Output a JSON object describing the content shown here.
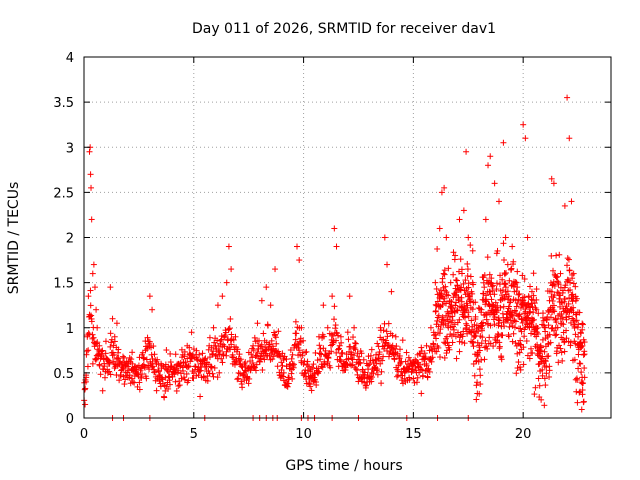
{
  "chart_data": {
    "type": "scatter",
    "title": "Day 011 of 2026, SRMTID for receiver dav1",
    "xlabel": "GPS time / hours",
    "ylabel": "SRMTID / TECUs",
    "xlim": [
      0,
      24
    ],
    "ylim": [
      0,
      4
    ],
    "xticks": [
      0,
      5,
      10,
      15,
      20
    ],
    "xtick_labels": [
      "0",
      "5",
      "10",
      "15",
      "20"
    ],
    "yticks": [
      0,
      0.5,
      1,
      1.5,
      2,
      2.5,
      3,
      3.5,
      4
    ],
    "ytick_labels": [
      "0",
      "0.5",
      "1",
      "1.5",
      "2",
      "2.5",
      "3",
      "3.5",
      "4"
    ],
    "grid": true,
    "marker": "plus",
    "color": "#ff0000",
    "series": [
      {
        "name": "SRMTID",
        "x_range": [
          0,
          22.8
        ],
        "points": [
          [
            0.05,
            0.15
          ],
          [
            0.1,
            0.45
          ],
          [
            0.15,
            0.9
          ],
          [
            0.2,
            1.35
          ],
          [
            0.25,
            2.95
          ],
          [
            0.28,
            3.0
          ],
          [
            0.3,
            2.7
          ],
          [
            0.32,
            2.55
          ],
          [
            0.35,
            2.2
          ],
          [
            0.4,
            1.6
          ],
          [
            0.45,
            1.7
          ],
          [
            0.5,
            1.45
          ],
          [
            0.55,
            1.2
          ],
          [
            0.6,
            1.0
          ],
          [
            0.7,
            0.8
          ],
          [
            0.8,
            0.7
          ],
          [
            0.9,
            0.65
          ],
          [
            1.0,
            0.85
          ],
          [
            1.1,
            0.6
          ],
          [
            1.2,
            1.45
          ],
          [
            1.3,
            1.1
          ],
          [
            1.4,
            0.9
          ],
          [
            1.5,
            1.05
          ],
          [
            1.6,
            0.6
          ],
          [
            1.8,
            0.55
          ],
          [
            2.0,
            0.45
          ],
          [
            2.2,
            0.6
          ],
          [
            2.4,
            0.5
          ],
          [
            2.6,
            0.55
          ],
          [
            2.8,
            0.75
          ],
          [
            3.0,
            1.35
          ],
          [
            3.1,
            1.2
          ],
          [
            3.3,
            0.6
          ],
          [
            3.5,
            0.35
          ],
          [
            3.7,
            0.3
          ],
          [
            3.9,
            0.45
          ],
          [
            4.1,
            0.5
          ],
          [
            4.3,
            0.6
          ],
          [
            4.5,
            0.7
          ],
          [
            4.7,
            0.8
          ],
          [
            4.9,
            0.95
          ],
          [
            5.1,
            0.7
          ],
          [
            5.3,
            0.6
          ],
          [
            5.5,
            0.65
          ],
          [
            5.7,
            0.8
          ],
          [
            5.9,
            1.0
          ],
          [
            6.1,
            1.25
          ],
          [
            6.3,
            1.35
          ],
          [
            6.5,
            1.5
          ],
          [
            6.6,
            1.9
          ],
          [
            6.7,
            1.65
          ],
          [
            6.9,
            0.9
          ],
          [
            7.1,
            0.6
          ],
          [
            7.3,
            0.5
          ],
          [
            7.5,
            0.55
          ],
          [
            7.7,
            0.8
          ],
          [
            7.9,
            1.05
          ],
          [
            8.1,
            1.3
          ],
          [
            8.3,
            1.45
          ],
          [
            8.5,
            1.25
          ],
          [
            8.7,
            1.65
          ],
          [
            8.9,
            0.7
          ],
          [
            9.1,
            0.5
          ],
          [
            9.3,
            0.45
          ],
          [
            9.5,
            0.7
          ],
          [
            9.7,
            1.9
          ],
          [
            9.8,
            1.75
          ],
          [
            9.9,
            1.0
          ],
          [
            10.1,
            0.5
          ],
          [
            10.3,
            0.35
          ],
          [
            10.5,
            0.5
          ],
          [
            10.7,
            0.9
          ],
          [
            10.9,
            1.25
          ],
          [
            11.1,
            1.0
          ],
          [
            11.3,
            1.35
          ],
          [
            11.4,
            2.1
          ],
          [
            11.5,
            1.9
          ],
          [
            11.7,
            0.9
          ],
          [
            11.9,
            0.6
          ],
          [
            12.1,
            1.35
          ],
          [
            12.3,
            1.0
          ],
          [
            12.5,
            0.6
          ],
          [
            12.7,
            0.45
          ],
          [
            12.9,
            0.4
          ],
          [
            13.1,
            0.5
          ],
          [
            13.3,
            0.7
          ],
          [
            13.5,
            1.0
          ],
          [
            13.7,
            2.0
          ],
          [
            13.8,
            1.7
          ],
          [
            14.0,
            1.4
          ],
          [
            14.2,
            0.9
          ],
          [
            14.4,
            0.6
          ],
          [
            14.6,
            0.5
          ],
          [
            14.8,
            0.55
          ],
          [
            15.0,
            0.6
          ],
          [
            15.2,
            0.7
          ],
          [
            15.4,
            0.65
          ],
          [
            15.6,
            0.8
          ],
          [
            15.8,
            1.0
          ],
          [
            16.0,
            1.5
          ],
          [
            16.2,
            2.1
          ],
          [
            16.3,
            2.5
          ],
          [
            16.4,
            2.55
          ],
          [
            16.5,
            2.0
          ],
          [
            16.7,
            1.5
          ],
          [
            16.9,
            1.8
          ],
          [
            17.1,
            2.2
          ],
          [
            17.3,
            2.3
          ],
          [
            17.4,
            2.95
          ],
          [
            17.5,
            2.0
          ],
          [
            17.7,
            1.5
          ],
          [
            17.9,
            0.7
          ],
          [
            18.1,
            1.2
          ],
          [
            18.3,
            2.2
          ],
          [
            18.4,
            2.8
          ],
          [
            18.5,
            2.9
          ],
          [
            18.7,
            2.6
          ],
          [
            18.9,
            2.4
          ],
          [
            19.1,
            3.05
          ],
          [
            19.2,
            2.0
          ],
          [
            19.3,
            1.7
          ],
          [
            19.5,
            1.9
          ],
          [
            19.7,
            1.5
          ],
          [
            19.9,
            1.3
          ],
          [
            20.0,
            3.25
          ],
          [
            20.1,
            3.1
          ],
          [
            20.2,
            2.0
          ],
          [
            20.4,
            1.4
          ],
          [
            20.6,
            1.2
          ],
          [
            20.8,
            0.8
          ],
          [
            21.0,
            1.0
          ],
          [
            21.2,
            1.3
          ],
          [
            21.3,
            2.65
          ],
          [
            21.4,
            2.6
          ],
          [
            21.5,
            1.8
          ],
          [
            21.7,
            1.6
          ],
          [
            21.9,
            2.35
          ],
          [
            22.0,
            3.55
          ],
          [
            22.1,
            3.1
          ],
          [
            22.2,
            2.4
          ],
          [
            22.3,
            1.6
          ],
          [
            22.4,
            1.3
          ],
          [
            22.5,
            0.9
          ],
          [
            22.6,
            0.6
          ],
          [
            22.7,
            0.8
          ],
          [
            22.8,
            0.45
          ]
        ]
      }
    ],
    "zero_points_x": [
      1.3,
      1.8,
      3.0,
      5.5,
      7.7,
      8.0,
      8.3,
      8.6,
      8.8,
      9.9,
      10.2,
      10.5,
      11.3,
      12.5,
      14.7,
      16.1,
      17.5
    ]
  }
}
